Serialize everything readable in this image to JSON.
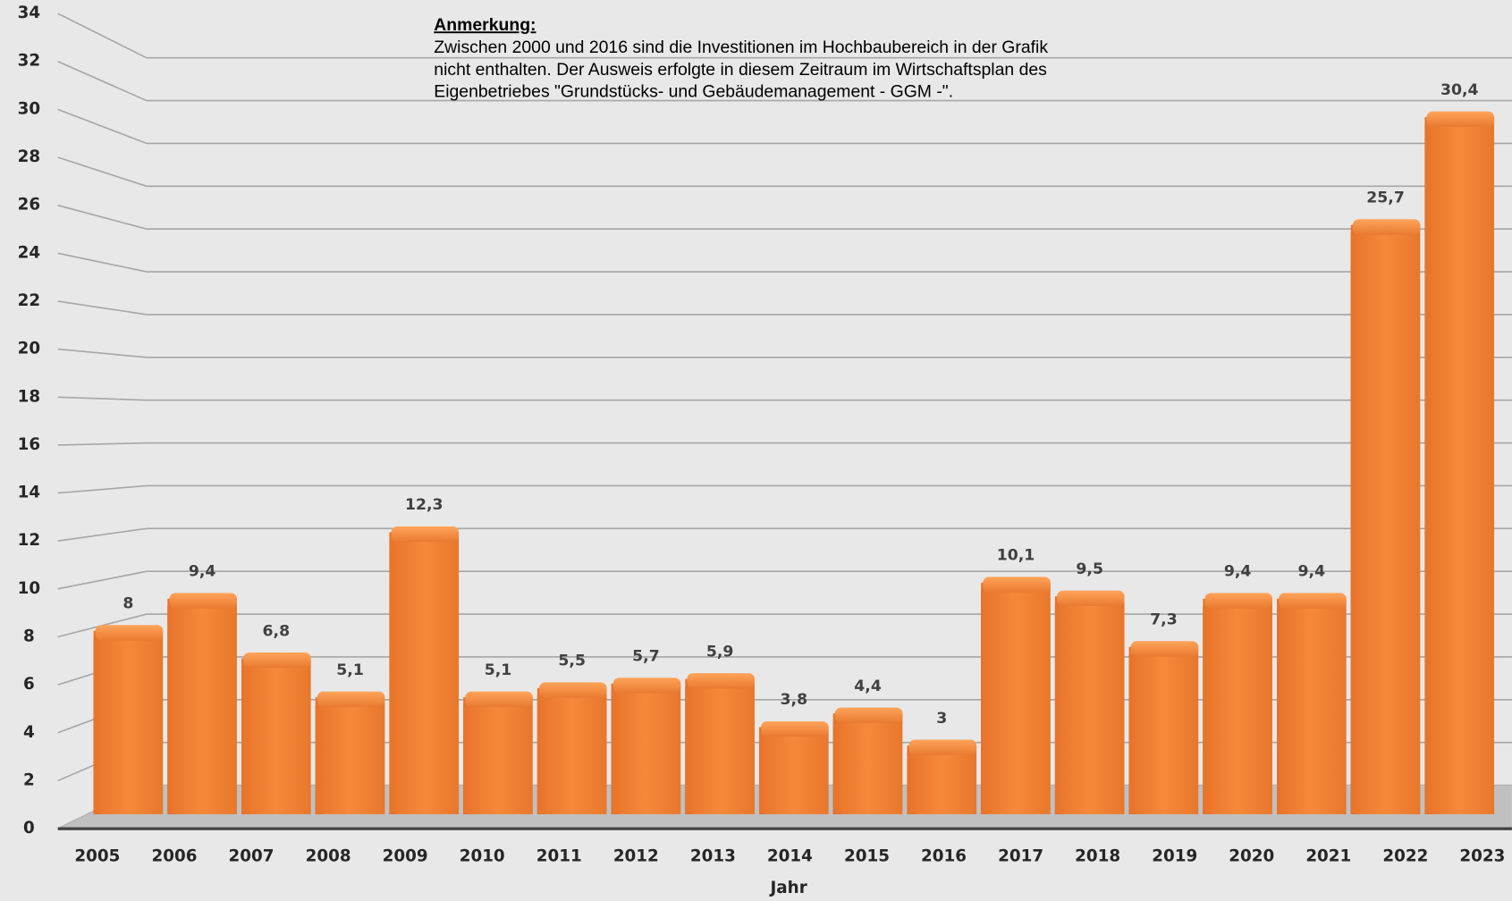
{
  "chart_data": {
    "type": "bar3d",
    "categories": [
      "2005",
      "2006",
      "2007",
      "2008",
      "2009",
      "2010",
      "2011",
      "2012",
      "2013",
      "2014",
      "2015",
      "2016",
      "2017",
      "2018",
      "2019",
      "2020",
      "2021",
      "2022",
      "2023"
    ],
    "values": [
      8,
      9.4,
      6.8,
      5.1,
      12.3,
      5.1,
      5.5,
      5.7,
      5.9,
      3.8,
      4.4,
      3,
      10.1,
      9.5,
      7.3,
      9.4,
      9.4,
      25.7,
      30.4
    ],
    "value_labels": [
      "8",
      "9,4",
      "6,8",
      "5,1",
      "12,3",
      "5,1",
      "5,5",
      "5,7",
      "5,9",
      "3,8",
      "4,4",
      "3",
      "10,1",
      "9,5",
      "7,3",
      "9,4",
      "9,4",
      "25,7",
      "30,4"
    ],
    "color": "#f08030",
    "ylim": [
      0,
      34
    ],
    "yticks": [
      0,
      2,
      4,
      6,
      8,
      10,
      12,
      14,
      16,
      18,
      20,
      22,
      24,
      26,
      28,
      30,
      32,
      34
    ],
    "grid": true,
    "x_label": "Jahr",
    "annotation": {
      "title": "Anmerkung:",
      "lines": [
        "Zwischen 2000 und 2016 sind die Investitionen im Hochbaubereich in der Grafik",
        "nicht enthalten. Der Ausweis erfolgte in diesem Zeitraum im Wirtschaftsplan des",
        "Eigenbetriebes \"Grundstücks- und Gebäudemanagement - GGM -\"."
      ]
    }
  }
}
